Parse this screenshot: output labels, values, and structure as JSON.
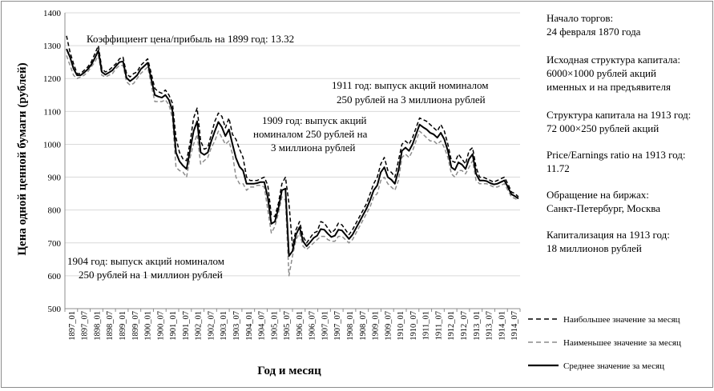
{
  "chart_data": {
    "type": "line",
    "title": "",
    "xlabel": "Год и месяц",
    "ylabel": "Цена одной ценной бумаги (рублей)",
    "ylim": [
      500,
      1400
    ],
    "yticks": [
      500,
      600,
      700,
      800,
      900,
      1000,
      1100,
      1200,
      1300,
      1400
    ],
    "xticks": [
      "1897_01",
      "1897_07",
      "1898_01",
      "1898_07",
      "1899_01",
      "1899_07",
      "1900_01",
      "1900_07",
      "1901_01",
      "1901_07",
      "1902_01",
      "1902_07",
      "1903_01",
      "1903_07",
      "1904_01",
      "1904_07",
      "1905_01",
      "1905_07",
      "1906_01",
      "1906_07",
      "1907_01",
      "1907_07",
      "1908_01",
      "1908_07",
      "1909_01",
      "1909_07",
      "1910_01",
      "1910_07",
      "1911_01",
      "1911_07",
      "1912_01",
      "1912_07",
      "1913_01",
      "1913_07",
      "1914_01",
      "1914_07"
    ],
    "grid": "horizontal",
    "legend": "bottom-right",
    "series": [
      {
        "name": "Наибольшее значение за месяц",
        "style": "dashed",
        "color": "#000000",
        "values": [
          1330,
          1280,
          1245,
          1215,
          1215,
          1225,
          1235,
          1250,
          1275,
          1300,
          1230,
          1220,
          1225,
          1235,
          1245,
          1260,
          1265,
          1215,
          1205,
          1215,
          1220,
          1240,
          1250,
          1260,
          1215,
          1170,
          1160,
          1155,
          1165,
          1150,
          1125,
          1020,
          975,
          955,
          950,
          1005,
          1080,
          1110,
          1010,
          985,
          990,
          1030,
          1070,
          1095,
          1085,
          1050,
          1080,
          1030,
          1015,
          985,
          960,
          900,
          890,
          890,
          890,
          895,
          900,
          875,
          785,
          780,
          820,
          880,
          900,
          820,
          690,
          740,
          765,
          720,
          700,
          715,
          730,
          735,
          765,
          760,
          745,
          730,
          740,
          760,
          755,
          740,
          725,
          740,
          760,
          780,
          800,
          820,
          850,
          880,
          900,
          940,
          960,
          920,
          915,
          900,
          950,
          1000,
          1010,
          1000,
          1020,
          1050,
          1080,
          1075,
          1070,
          1060,
          1050,
          1040,
          1060,
          1040,
          1000,
          950,
          945,
          970,
          955,
          940,
          980,
          990,
          930,
          900,
          900,
          895,
          890,
          885,
          890,
          895,
          900,
          880,
          855,
          850,
          840
        ]
      },
      {
        "name": "Наименьшее значение за месяц",
        "style": "dashed",
        "color": "#8c8c8c",
        "values": [
          1270,
          1240,
          1210,
          1200,
          1205,
          1210,
          1220,
          1235,
          1250,
          1270,
          1210,
          1205,
          1210,
          1215,
          1230,
          1240,
          1240,
          1190,
          1180,
          1185,
          1200,
          1215,
          1225,
          1235,
          1180,
          1130,
          1130,
          1130,
          1135,
          1120,
          1080,
          930,
          920,
          915,
          900,
          960,
          1000,
          1030,
          940,
          950,
          960,
          990,
          1010,
          1040,
          1020,
          1000,
          1010,
          970,
          900,
          880,
          880,
          860,
          870,
          870,
          875,
          875,
          870,
          800,
          730,
          750,
          790,
          840,
          830,
          600,
          660,
          710,
          730,
          690,
          680,
          690,
          700,
          710,
          720,
          720,
          710,
          705,
          705,
          720,
          720,
          710,
          700,
          710,
          730,
          750,
          770,
          790,
          810,
          840,
          850,
          890,
          900,
          880,
          870,
          860,
          890,
          960,
          970,
          960,
          980,
          1010,
          1040,
          1030,
          1020,
          1010,
          1010,
          1000,
          1010,
          990,
          960,
          910,
          900,
          920,
          920,
          910,
          930,
          950,
          890,
          880,
          880,
          880,
          875,
          870,
          870,
          875,
          880,
          860,
          840,
          835,
          830
        ]
      },
      {
        "name": "Среднее значение за месяц",
        "style": "solid",
        "color": "#000000",
        "values": [
          1290,
          1265,
          1230,
          1210,
          1210,
          1218,
          1228,
          1242,
          1262,
          1285,
          1220,
          1212,
          1218,
          1225,
          1238,
          1250,
          1252,
          1202,
          1192,
          1200,
          1210,
          1228,
          1238,
          1248,
          1198,
          1150,
          1145,
          1142,
          1150,
          1135,
          1102,
          975,
          948,
          935,
          925,
          982,
          1040,
          1070,
          975,
          968,
          975,
          1010,
          1040,
          1068,
          1052,
          1025,
          1045,
          1000,
          958,
          932,
          920,
          880,
          880,
          880,
          882,
          885,
          885,
          838,
          758,
          765,
          805,
          860,
          865,
          660,
          675,
          725,
          748,
          705,
          690,
          702,
          715,
          722,
          742,
          740,
          728,
          718,
          722,
          740,
          738,
          725,
          712,
          725,
          745,
          765,
          785,
          805,
          830,
          860,
          875,
          915,
          930,
          900,
          892,
          880,
          920,
          980,
          990,
          980,
          1000,
          1030,
          1060,
          1052,
          1045,
          1035,
          1030,
          1020,
          1035,
          1015,
          980,
          930,
          922,
          945,
          938,
          925,
          955,
          970,
          910,
          890,
          890,
          888,
          882,
          878,
          880,
          885,
          890,
          870,
          848,
          842,
          835
        ]
      }
    ],
    "annotations": [
      "Коэффициент цена/прибыль на 1899 год: 13.32",
      "1911 год: выпуск акций номиналом",
      "250 рублей на 3 миллиона рублей",
      "1909 год: выпуск акций",
      "номиналом 250 рублей на",
      "3 миллиона рублей",
      "1904 год: выпуск акций номиналом",
      "250 рублей на 1 миллион рублей"
    ]
  },
  "info_panel": [
    "Начало торгов:\n24 февраля 1870 года",
    "Исходная структура капитала:\n6000×1000 рублей акций\nименных и на предъявителя",
    "Структура капитала на 1913 год:\n72 000×250 рублей акций",
    "Price/Earnings ratio на 1913 год:\n11.72",
    "Обращение на биржах:\nСанкт-Петербург, Москва",
    "Капитализация на 1913 год:\n18 миллионов рублей"
  ]
}
